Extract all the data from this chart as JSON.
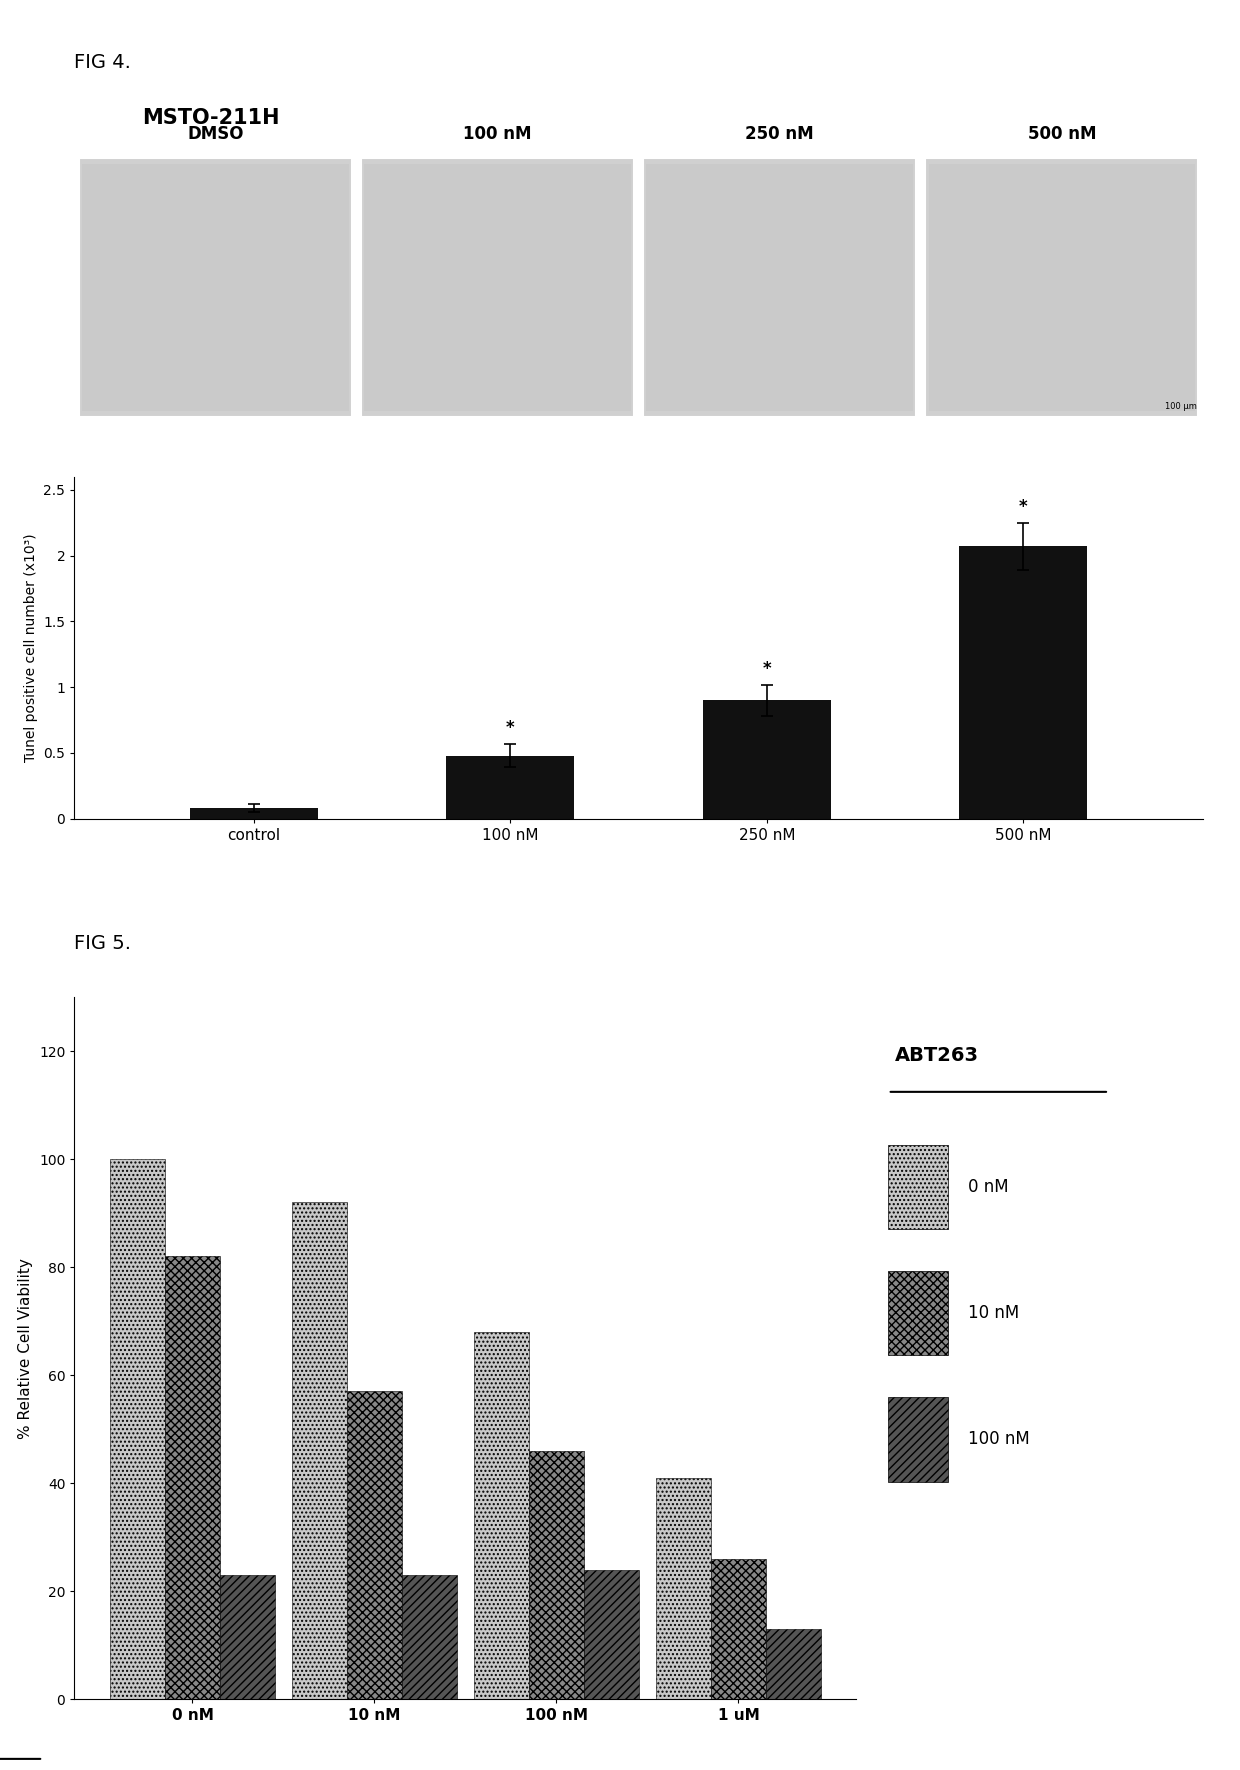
{
  "fig4_title": "FIG 4.",
  "fig5_title": "FIG 5.",
  "msto_title": "MSTO-211H",
  "microscopy_labels": [
    "DMSO",
    "100 nM",
    "250 nM",
    "500 nM"
  ],
  "bar_categories": [
    "control",
    "100 nM",
    "250 nM",
    "500 nM"
  ],
  "bar_values": [
    0.08,
    0.48,
    0.9,
    2.07
  ],
  "bar_errors": [
    0.03,
    0.09,
    0.12,
    0.18
  ],
  "bar_color": "#111111",
  "ylabel_fig4": "Tunel positive cell number (x10³)",
  "yticks_fig4": [
    0,
    0.5,
    1.0,
    1.5,
    2.0,
    2.5
  ],
  "ytick_labels_fig4": [
    "0",
    "0.5",
    "1",
    "1.5",
    "2",
    "2.5"
  ],
  "fig5_iMDK_labels": [
    "0 nM",
    "10 nM",
    "100 nM",
    "1 uM"
  ],
  "fig5_ABT263_labels": [
    "0 nM",
    "10 nM",
    "100 nM"
  ],
  "fig5_data": {
    "0 nM": [
      100,
      82,
      23
    ],
    "10 nM": [
      92,
      57,
      23
    ],
    "100 nM": [
      68,
      46,
      24
    ],
    "1 uM": [
      41,
      26,
      13
    ]
  },
  "fig5_colors": [
    "#c8c8c8",
    "#888888",
    "#555555"
  ],
  "fig5_ylabel": "% Relative Cell Viability",
  "fig5_yticks": [
    0,
    20,
    40,
    60,
    80,
    100,
    120
  ],
  "fig5_legend_title": "ABT263",
  "bg_color": "#ffffff",
  "microscopy_bg": "#d0d0d0"
}
